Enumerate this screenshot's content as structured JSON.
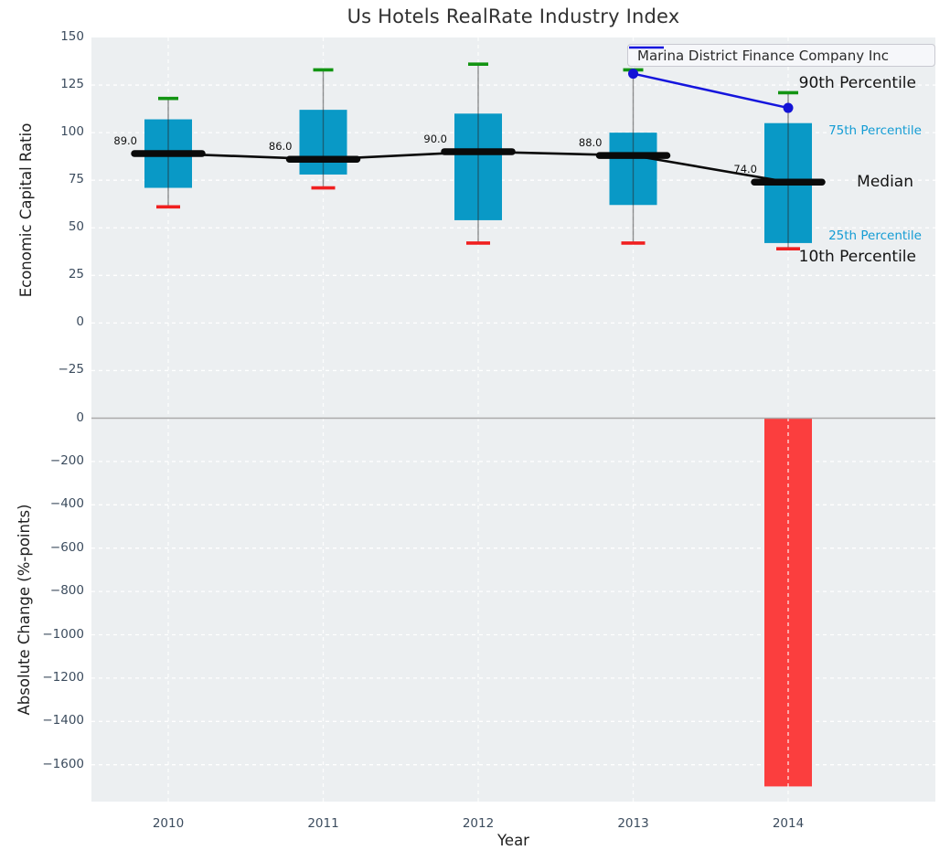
{
  "title": "Us Hotels RealRate Industry Index",
  "legend": {
    "label": "Marina District Finance Company Inc"
  },
  "axes": {
    "top": {
      "ylabel": "Economic Capital Ratio"
    },
    "bottom": {
      "ylabel": "Absolute Change (%-points)"
    },
    "x": {
      "label": "Year"
    }
  },
  "side_labels": {
    "p90": "90th Percentile",
    "p75": "75th Percentile",
    "median": "Median",
    "p25": "25th Percentile",
    "p10": "10th Percentile"
  },
  "colors": {
    "plot_bg": "#eceff1",
    "grid": "#ffffff",
    "box_fill": "#0999c6",
    "p90_cap": "#129412",
    "p10_cap": "#f01f1f",
    "median_line": "#0a0a0a",
    "company_line": "#1515dd",
    "bar_negative": "#fb3e3e",
    "zero_line": "#aaaaaa",
    "tick_text": "#3c4c5e",
    "percentile_text": "#149cd4"
  },
  "chart_data": [
    {
      "type": "boxplot",
      "title": "Us Hotels RealRate Industry Index",
      "categories": [
        "2010",
        "2011",
        "2012",
        "2013",
        "2014"
      ],
      "xlabel": "Year",
      "ylabel": "Economic Capital Ratio",
      "ylim": [
        -50,
        150
      ],
      "yticks": [
        150,
        125,
        100,
        75,
        50,
        25,
        0,
        -25
      ],
      "grid": true,
      "legend_position": "upper right",
      "series": [
        {
          "name": "90th Percentile",
          "values": [
            118,
            133,
            136,
            133,
            121
          ]
        },
        {
          "name": "75th Percentile",
          "values": [
            107,
            112,
            110,
            100,
            105
          ]
        },
        {
          "name": "Median",
          "values": [
            89,
            86,
            90,
            88,
            74
          ]
        },
        {
          "name": "25th Percentile",
          "values": [
            71,
            78,
            54,
            62,
            42
          ]
        },
        {
          "name": "10th Percentile",
          "values": [
            61,
            71,
            42,
            42,
            39
          ]
        },
        {
          "name": "Marina District Finance Company Inc",
          "values": [
            null,
            null,
            null,
            131,
            113
          ]
        }
      ],
      "median_labels": [
        "89.0",
        "86.0",
        "90.0",
        "88.0",
        "74.0"
      ]
    },
    {
      "type": "bar",
      "categories": [
        "2010",
        "2011",
        "2012",
        "2013",
        "2014"
      ],
      "values": [
        null,
        null,
        null,
        null,
        -1700
      ],
      "ylabel": "Absolute Change (%-points)",
      "ylim": [
        -1770,
        0
      ],
      "yticks": [
        0,
        -200,
        -400,
        -600,
        -800,
        -1000,
        -1200,
        -1400,
        -1600
      ],
      "grid": true
    }
  ]
}
